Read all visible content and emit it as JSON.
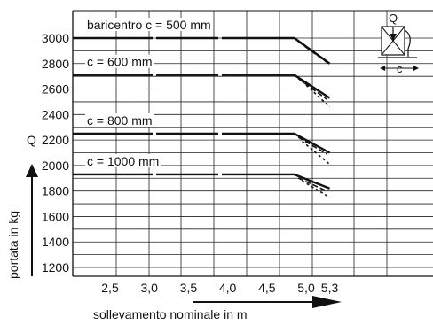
{
  "chart_data": {
    "type": "line",
    "ylabel": "portata in kg",
    "ylabel_letter": "Q",
    "xlabel": "sollevamento nominale in m",
    "y_ticks": [
      "3000",
      "2800",
      "2600",
      "2400",
      "2200",
      "2000",
      "1800",
      "1600",
      "1400",
      "1200"
    ],
    "y_tick_values": [
      3000,
      2800,
      2600,
      2400,
      2200,
      2000,
      1800,
      1600,
      1400,
      1200
    ],
    "x_ticks": [
      "2,5",
      "3,0",
      "3,5",
      "4,0",
      "4,5",
      "5,0",
      "5,3"
    ],
    "x_tick_values": [
      2.5,
      3.0,
      3.5,
      4.0,
      4.5,
      5.0,
      5.3
    ],
    "ylim": [
      1150,
      3080
    ],
    "grid": true,
    "series": [
      {
        "name": "baricentro  c = 500 mm",
        "level": 3000,
        "solid": [
          [
            2.0,
            3000
          ],
          [
            4.85,
            3000
          ],
          [
            5.3,
            2800
          ]
        ],
        "dashed": [
          [
            4.9,
            3000
          ],
          [
            5.2,
            2850
          ]
        ]
      },
      {
        "name": "c = 600 mm",
        "level": 2710,
        "solid": [
          [
            2.0,
            2710
          ],
          [
            4.85,
            2710
          ],
          [
            5.3,
            2530
          ]
        ],
        "dashed": [
          [
            4.9,
            2710
          ],
          [
            5.2,
            2560
          ]
        ],
        "dotted": [
          [
            4.95,
            2660
          ],
          [
            5.3,
            2460
          ]
        ]
      },
      {
        "name": "c = 800 mm",
        "level": 2250,
        "solid": [
          [
            2.0,
            2250
          ],
          [
            4.85,
            2250
          ],
          [
            5.3,
            2100
          ]
        ],
        "dashed": [
          [
            4.9,
            2250
          ],
          [
            5.2,
            2130
          ]
        ],
        "dotted": [
          [
            4.95,
            2190
          ],
          [
            5.3,
            2010
          ]
        ]
      },
      {
        "name": "c = 1000 mm",
        "level": 1930,
        "solid": [
          [
            2.0,
            1930
          ],
          [
            4.85,
            1930
          ],
          [
            5.3,
            1820
          ]
        ],
        "dashed": [
          [
            4.9,
            1930
          ],
          [
            5.2,
            1840
          ]
        ],
        "dotted": [
          [
            4.95,
            1880
          ],
          [
            5.3,
            1750
          ]
        ]
      }
    ],
    "inset": {
      "q_label": "Q",
      "c_label": "c"
    }
  }
}
